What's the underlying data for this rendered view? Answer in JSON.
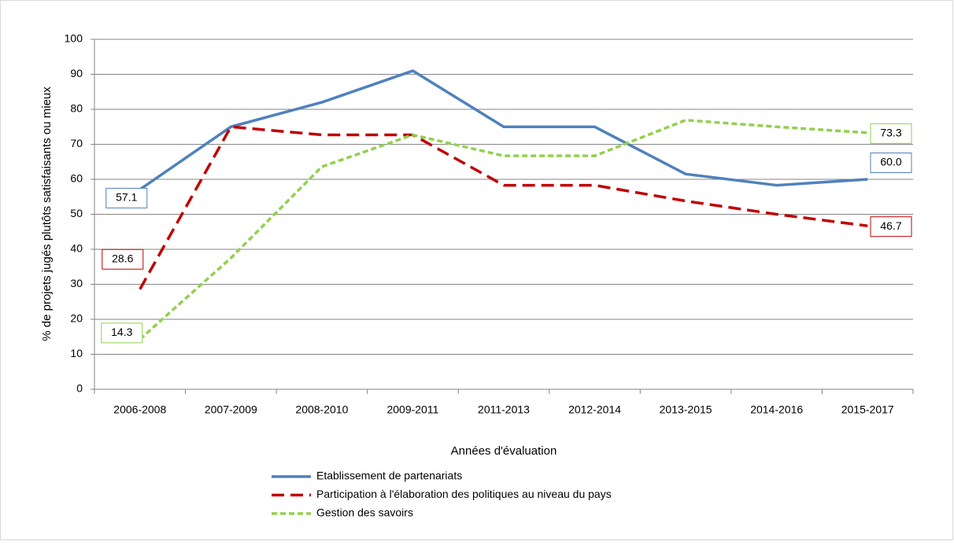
{
  "chart_data": {
    "type": "line",
    "xlabel": "Années d'évaluation",
    "ylabel": "% de projets  jugés plutôts satisfaisants ou mieux",
    "categories": [
      "2006-2008",
      "2007-2009",
      "2008-2010",
      "2009-2011",
      "2011-2013",
      "2012-2014",
      "2013-2015",
      "2014-2016",
      "2015-2017"
    ],
    "series": [
      {
        "name": "Etablissement de partenariats",
        "color": "#4f81bd",
        "dash": "solid",
        "values": [
          57.1,
          75,
          82,
          91,
          75,
          75,
          61.5,
          58.3,
          60.0
        ],
        "value_labels": [
          "57.1",
          null,
          null,
          null,
          null,
          null,
          null,
          null,
          "60.0"
        ]
      },
      {
        "name": "Participation à l'élaboration des politiques au niveau du pays",
        "color": "#c00000",
        "dash": "long",
        "values": [
          28.6,
          75,
          72.7,
          72.7,
          58.3,
          58.3,
          53.8,
          50,
          46.7
        ],
        "value_labels": [
          "28.6",
          null,
          null,
          null,
          null,
          null,
          null,
          null,
          "46.7"
        ]
      },
      {
        "name": "Gestion des savoirs",
        "color": "#92d050",
        "dash": "short",
        "values": [
          14.3,
          37.5,
          63.6,
          72.7,
          66.7,
          66.7,
          76.9,
          75,
          73.3
        ],
        "value_labels": [
          "14.3",
          null,
          null,
          null,
          null,
          null,
          null,
          null,
          "73.3"
        ]
      }
    ],
    "ylim": [
      0,
      100
    ],
    "yticks": [
      0,
      10,
      20,
      30,
      40,
      50,
      60,
      70,
      80,
      90,
      100
    ],
    "grid": true,
    "legend": "bottom"
  }
}
